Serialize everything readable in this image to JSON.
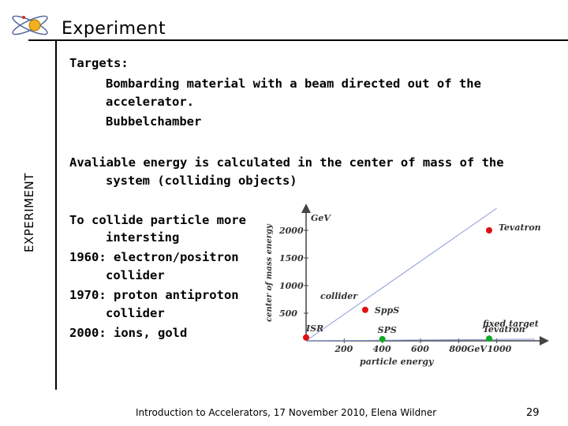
{
  "header": {
    "title": "Experiment",
    "logo_icon": "cern-logo-icon"
  },
  "sidebar": {
    "label": "EXPERIMENT"
  },
  "content": {
    "targets_heading": "Targets:",
    "targets_line1": "Bombarding material with a beam directed out of the",
    "targets_line2": "accelerator.",
    "targets_line3": "Bubbelchamber",
    "energy_line1": "Avaliable energy is calculated in the center of mass of the",
    "energy_line2": "system (colliding objects)",
    "collide_line1": "To collide particle more",
    "collide_line2": "intersting",
    "y1960_line1": "1960: electron/positron",
    "y1960_line2": "collider",
    "y1970_line1": "1970: proton antiproton",
    "y1970_line2": "collider",
    "y2000_line1": "2000: ions, gold"
  },
  "chart_data": {
    "type": "line",
    "xlabel": "particle energy",
    "ylabel": "center of mass energy",
    "x_unit": "GeV",
    "y_unit": "GeV",
    "x_ticks": [
      "200",
      "400",
      "600",
      "800",
      "1000"
    ],
    "y_ticks": [
      "500",
      "1000",
      "1500",
      "2000"
    ],
    "collider_line": {
      "label": "collider",
      "points": [
        [
          0,
          0
        ],
        [
          1000,
          2400
        ]
      ]
    },
    "fixed_target_line": {
      "label": "fixed target",
      "points": [
        [
          0,
          0
        ],
        [
          1200,
          30
        ]
      ]
    },
    "points": [
      {
        "label": "Tevatron",
        "x": 960,
        "y": 2000,
        "color": "#dd1111"
      },
      {
        "label": "SppS",
        "x": 310,
        "y": 560,
        "color": "#dd1111"
      },
      {
        "label": "ISR",
        "x": 0,
        "y": 60,
        "color": "#dd1111"
      },
      {
        "label": "SPS",
        "x": 400,
        "y": 30,
        "color": "#11aa22"
      },
      {
        "label": "Tevatron",
        "x": 960,
        "y": 40,
        "color": "#11aa22"
      }
    ],
    "xlim": [
      0,
      1200
    ],
    "ylim": [
      0,
      2400
    ],
    "legend": "none",
    "grid": false
  },
  "footer": {
    "text": "Introduction to Accelerators, 17 November 2010, Elena Wildner",
    "page": "29"
  }
}
